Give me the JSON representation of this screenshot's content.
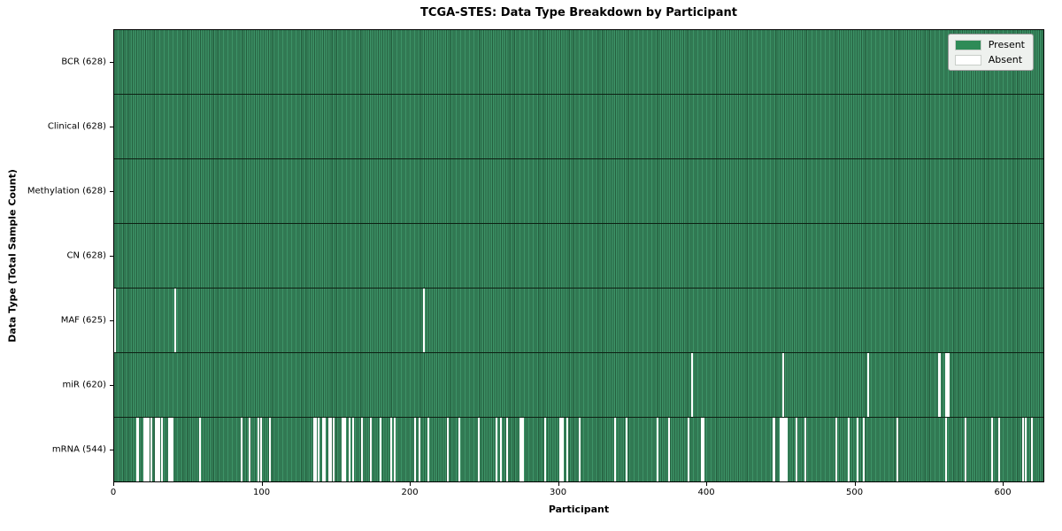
{
  "title": "TCGA-STES: Data Type Breakdown by Participant",
  "axes": {
    "xlabel": "Participant",
    "ylabel": "Data Type (Total Sample Count)"
  },
  "legend": {
    "items": [
      {
        "label": "Present",
        "color": "#2e8b57"
      },
      {
        "label": "Absent",
        "color": "#ffffff"
      }
    ]
  },
  "colors": {
    "present_light": "#3d9367",
    "present_dark": "#255f3f",
    "absent": "#ffffff",
    "row_divider": "#0d2013",
    "spine": "#000000",
    "legend_bg": "#eef1ee"
  },
  "chart_data": {
    "type": "heatmap",
    "title": "TCGA-STES: Data Type Breakdown by Participant",
    "xlabel": "Participant",
    "ylabel": "Data Type (Total Sample Count)",
    "x_range": [
      0,
      628
    ],
    "x_ticks": [
      0,
      100,
      200,
      300,
      400,
      500,
      600
    ],
    "total_participants": 628,
    "legend_position": "upper right",
    "grid": false,
    "rows": [
      {
        "data_type": "BCR",
        "label": "BCR (628)",
        "present_count": 628,
        "absent_participants": []
      },
      {
        "data_type": "Clinical",
        "label": "Clinical (628)",
        "present_count": 628,
        "absent_participants": []
      },
      {
        "data_type": "Methylation",
        "label": "Methylation (628)",
        "present_count": 628,
        "absent_participants": []
      },
      {
        "data_type": "CN",
        "label": "CN (628)",
        "present_count": 628,
        "absent_participants": []
      },
      {
        "data_type": "MAF",
        "label": "MAF (625)",
        "present_count": 625,
        "absent_participants": [
          0,
          41,
          209
        ]
      },
      {
        "data_type": "miR",
        "label": "miR (620)",
        "present_count": 620,
        "absent_participants": [
          390,
          452,
          509,
          557,
          558,
          562,
          563,
          564
        ]
      },
      {
        "data_type": "mRNA",
        "label": "mRNA (544)",
        "present_count": 544,
        "absent_participants": [
          15,
          16,
          20,
          21,
          22,
          23,
          25,
          28,
          29,
          30,
          32,
          37,
          38,
          39,
          58,
          86,
          91,
          97,
          99,
          105,
          135,
          136,
          138,
          141,
          142,
          145,
          146,
          148,
          154,
          155,
          156,
          159,
          161,
          167,
          173,
          180,
          187,
          189,
          203,
          206,
          212,
          225,
          233,
          246,
          258,
          261,
          265,
          274,
          275,
          276,
          291,
          301,
          302,
          303,
          306,
          314,
          338,
          346,
          367,
          375,
          388,
          397,
          398,
          445,
          446,
          450,
          451,
          452,
          453,
          454,
          461,
          467,
          488,
          496,
          502,
          506,
          529,
          562,
          575,
          593,
          598,
          614,
          616,
          620
        ]
      }
    ]
  }
}
